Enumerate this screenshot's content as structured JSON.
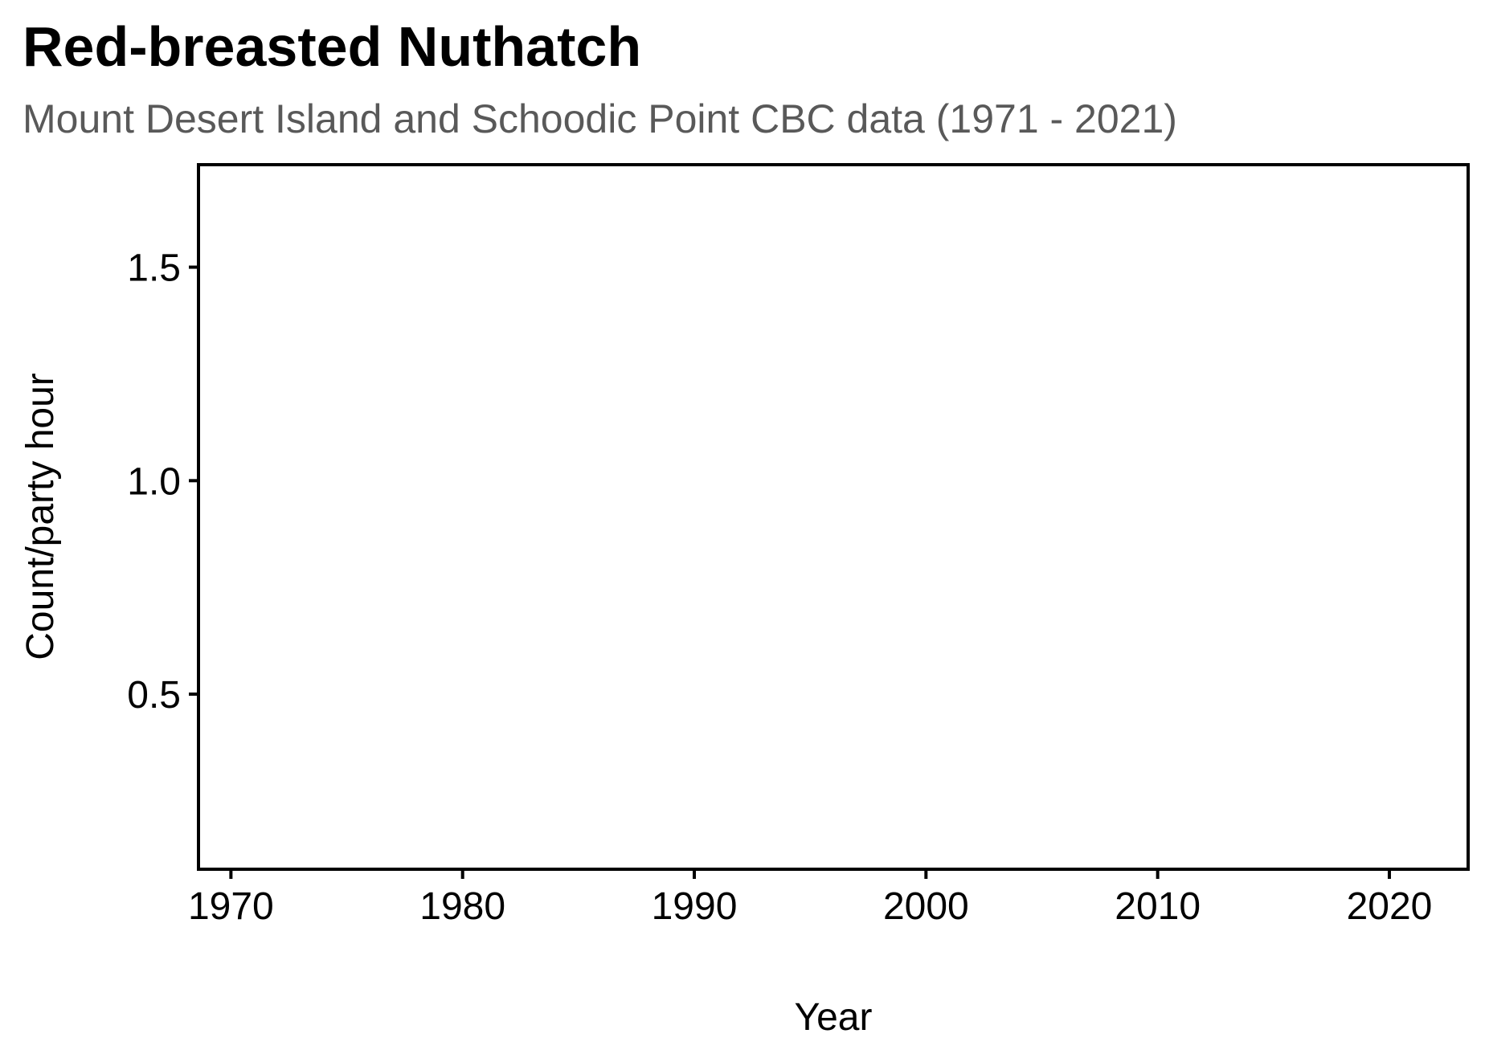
{
  "chart_data": {
    "type": "line",
    "title": "Red-breasted Nuthatch",
    "subtitle": "Mount Desert Island and Schoodic Point CBC data (1971 - 2021)",
    "xlabel": "Year",
    "ylabel": "Count/party hour",
    "xlim": [
      1968.6,
      2023.4
    ],
    "ylim": [
      0.09,
      1.74
    ],
    "x_ticks": [
      {
        "value": 1970,
        "label": "1970"
      },
      {
        "value": 1980,
        "label": "1980"
      },
      {
        "value": 1990,
        "label": "1990"
      },
      {
        "value": 2000,
        "label": "2000"
      },
      {
        "value": 2010,
        "label": "2010"
      },
      {
        "value": 2020,
        "label": "2020"
      }
    ],
    "y_ticks": [
      {
        "value": 0.5,
        "label": "0.5"
      },
      {
        "value": 1.0,
        "label": "1.0"
      },
      {
        "value": 1.5,
        "label": "1.5"
      }
    ],
    "grid": false,
    "legend": "none",
    "series": []
  }
}
